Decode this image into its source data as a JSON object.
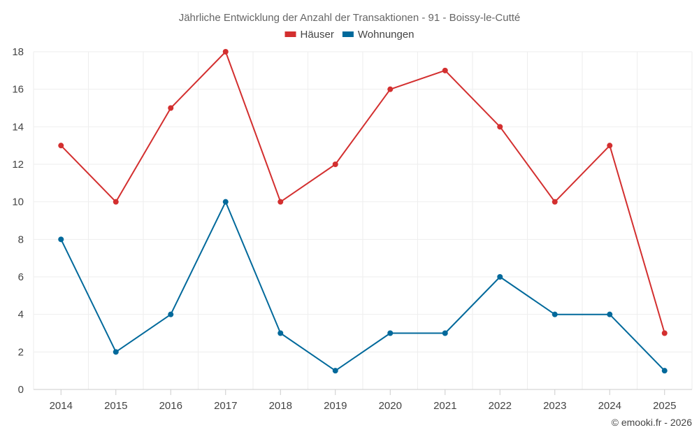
{
  "chart_data": {
    "type": "line",
    "title": "Jährliche Entwicklung der Anzahl der Transaktionen - 91 - Boissy-le-Cutté",
    "categories": [
      "2014",
      "2015",
      "2016",
      "2017",
      "2018",
      "2019",
      "2020",
      "2021",
      "2022",
      "2023",
      "2024",
      "2025"
    ],
    "series": [
      {
        "name": "Häuser",
        "color": "#d32f2f",
        "values": [
          13,
          10,
          15,
          18,
          10,
          12,
          16,
          17,
          14,
          10,
          13,
          3
        ]
      },
      {
        "name": "Wohnungen",
        "color": "#01699b",
        "values": [
          8,
          2,
          4,
          10,
          3,
          1,
          3,
          3,
          6,
          4,
          4,
          1
        ]
      }
    ],
    "ylim": [
      0,
      18
    ],
    "yticks": [
      0,
      2,
      4,
      6,
      8,
      10,
      12,
      14,
      16,
      18
    ],
    "xlabel": "",
    "ylabel": "",
    "grid": true,
    "legend": "top-center"
  },
  "credit": "© emooki.fr - 2026"
}
